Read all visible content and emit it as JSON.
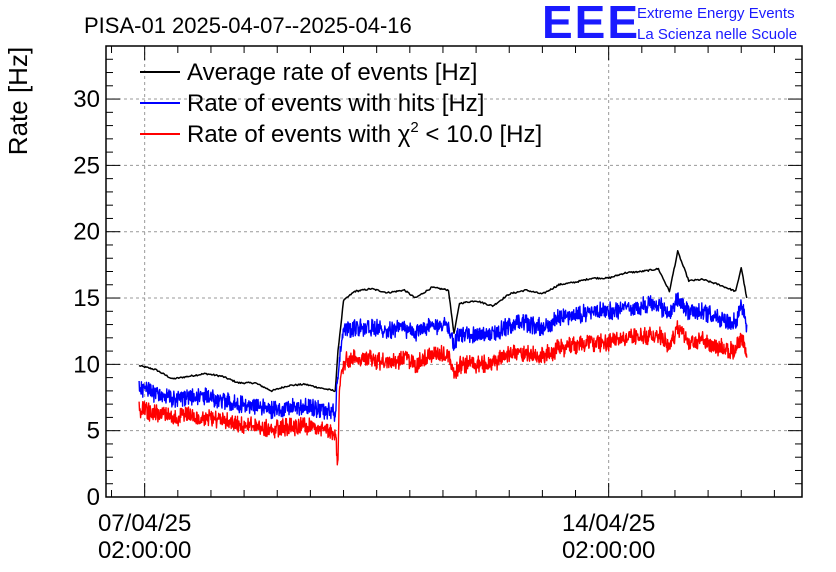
{
  "chart_data": {
    "type": "line",
    "title": "PISA-01 2025-04-07--2025-04-16",
    "ylabel": "Rate [Hz]",
    "xlabel": "",
    "ylim": [
      0,
      34
    ],
    "xlim": [
      "2025-04-06 12:00",
      "2025-04-17 00:00"
    ],
    "yticks": [
      0,
      5,
      10,
      15,
      20,
      25,
      30
    ],
    "xticks": [
      {
        "x": "2025-04-07 02:00",
        "date_label": "07/04/25",
        "time_label": "02:00:00"
      },
      {
        "x": "2025-04-14 02:00",
        "date_label": "14/04/25",
        "time_label": "02:00:00"
      }
    ],
    "grid": true,
    "legend_position": "top-left",
    "series": [
      {
        "name": "Average rate of events [Hz]",
        "color": "#000000",
        "noise": 0.0,
        "points": [
          [
            "2025-04-07 00:00",
            9.9
          ],
          [
            "2025-04-07 06:00",
            9.6
          ],
          [
            "2025-04-07 12:00",
            8.9
          ],
          [
            "2025-04-07 18:00",
            9.1
          ],
          [
            "2025-04-08 00:00",
            9.3
          ],
          [
            "2025-04-08 06:00",
            9.1
          ],
          [
            "2025-04-08 12:00",
            8.6
          ],
          [
            "2025-04-08 18:00",
            8.6
          ],
          [
            "2025-04-09 00:00",
            8.0
          ],
          [
            "2025-04-09 06:00",
            8.4
          ],
          [
            "2025-04-09 12:00",
            8.5
          ],
          [
            "2025-04-09 18:00",
            8.2
          ],
          [
            "2025-04-09 23:00",
            8.0
          ],
          [
            "2025-04-10 00:00",
            11.0
          ],
          [
            "2025-04-10 02:00",
            14.8
          ],
          [
            "2025-04-10 06:00",
            15.5
          ],
          [
            "2025-04-10 12:00",
            15.7
          ],
          [
            "2025-04-10 18:00",
            15.4
          ],
          [
            "2025-04-11 00:00",
            15.6
          ],
          [
            "2025-04-11 04:00",
            15.0
          ],
          [
            "2025-04-11 10:00",
            15.8
          ],
          [
            "2025-04-11 16:00",
            15.6
          ],
          [
            "2025-04-11 18:00",
            12.3
          ],
          [
            "2025-04-11 20:00",
            14.6
          ],
          [
            "2025-04-12 02:00",
            14.8
          ],
          [
            "2025-04-12 08:00",
            14.4
          ],
          [
            "2025-04-12 14:00",
            15.3
          ],
          [
            "2025-04-12 20:00",
            15.6
          ],
          [
            "2025-04-13 02:00",
            15.3
          ],
          [
            "2025-04-13 08:00",
            16.0
          ],
          [
            "2025-04-13 14:00",
            16.2
          ],
          [
            "2025-04-13 20:00",
            16.5
          ],
          [
            "2025-04-14 02:00",
            16.5
          ],
          [
            "2025-04-14 08:00",
            16.9
          ],
          [
            "2025-04-14 14:00",
            17.0
          ],
          [
            "2025-04-14 20:00",
            17.2
          ],
          [
            "2025-04-15 00:00",
            15.5
          ],
          [
            "2025-04-15 03:00",
            18.5
          ],
          [
            "2025-04-15 07:00",
            16.3
          ],
          [
            "2025-04-15 12:00",
            16.4
          ],
          [
            "2025-04-15 18:00",
            16.0
          ],
          [
            "2025-04-16 00:00",
            15.5
          ],
          [
            "2025-04-16 02:00",
            17.3
          ],
          [
            "2025-04-16 04:00",
            15.0
          ]
        ]
      },
      {
        "name": "Rate of events with hits [Hz]",
        "color": "#0000ff",
        "noise": 0.7,
        "points": [
          [
            "2025-04-07 00:00",
            8.2
          ],
          [
            "2025-04-07 06:00",
            7.8
          ],
          [
            "2025-04-07 12:00",
            7.4
          ],
          [
            "2025-04-07 18:00",
            7.6
          ],
          [
            "2025-04-08 00:00",
            7.6
          ],
          [
            "2025-04-08 06:00",
            7.3
          ],
          [
            "2025-04-08 12:00",
            7.0
          ],
          [
            "2025-04-08 18:00",
            6.9
          ],
          [
            "2025-04-09 00:00",
            6.6
          ],
          [
            "2025-04-09 06:00",
            6.8
          ],
          [
            "2025-04-09 12:00",
            6.8
          ],
          [
            "2025-04-09 18:00",
            6.6
          ],
          [
            "2025-04-09 23:00",
            6.4
          ],
          [
            "2025-04-10 00:00",
            9.5
          ],
          [
            "2025-04-10 02:00",
            12.5
          ],
          [
            "2025-04-10 06:00",
            12.8
          ],
          [
            "2025-04-10 12:00",
            12.8
          ],
          [
            "2025-04-10 18:00",
            12.5
          ],
          [
            "2025-04-11 00:00",
            12.7
          ],
          [
            "2025-04-11 04:00",
            12.4
          ],
          [
            "2025-04-11 10:00",
            13.0
          ],
          [
            "2025-04-11 16:00",
            12.8
          ],
          [
            "2025-04-11 18:00",
            11.5
          ],
          [
            "2025-04-11 20:00",
            12.3
          ],
          [
            "2025-04-12 02:00",
            12.3
          ],
          [
            "2025-04-12 08:00",
            12.2
          ],
          [
            "2025-04-12 14:00",
            13.0
          ],
          [
            "2025-04-12 20:00",
            13.1
          ],
          [
            "2025-04-13 02:00",
            12.8
          ],
          [
            "2025-04-13 08:00",
            13.5
          ],
          [
            "2025-04-13 14:00",
            13.7
          ],
          [
            "2025-04-13 20:00",
            14.0
          ],
          [
            "2025-04-14 02:00",
            14.0
          ],
          [
            "2025-04-14 08:00",
            14.2
          ],
          [
            "2025-04-14 14:00",
            14.4
          ],
          [
            "2025-04-14 20:00",
            14.6
          ],
          [
            "2025-04-15 00:00",
            13.5
          ],
          [
            "2025-04-15 03:00",
            15.0
          ],
          [
            "2025-04-15 07:00",
            14.0
          ],
          [
            "2025-04-15 12:00",
            14.0
          ],
          [
            "2025-04-15 18:00",
            13.5
          ],
          [
            "2025-04-16 00:00",
            13.2
          ],
          [
            "2025-04-16 02:00",
            14.4
          ],
          [
            "2025-04-16 04:00",
            13.0
          ]
        ]
      },
      {
        "name": "Rate of events with χ² < 10.0 [Hz]",
        "color": "#ff0000",
        "noise": 0.7,
        "points": [
          [
            "2025-04-07 00:00",
            6.6
          ],
          [
            "2025-04-07 06:00",
            6.3
          ],
          [
            "2025-04-07 12:00",
            5.9
          ],
          [
            "2025-04-07 18:00",
            6.1
          ],
          [
            "2025-04-08 00:00",
            6.0
          ],
          [
            "2025-04-08 06:00",
            5.8
          ],
          [
            "2025-04-08 12:00",
            5.4
          ],
          [
            "2025-04-08 18:00",
            5.4
          ],
          [
            "2025-04-09 00:00",
            5.1
          ],
          [
            "2025-04-09 06:00",
            5.3
          ],
          [
            "2025-04-09 12:00",
            5.3
          ],
          [
            "2025-04-09 18:00",
            5.1
          ],
          [
            "2025-04-09 23:00",
            5.0
          ],
          [
            "2025-04-10 00:00",
            2.5
          ],
          [
            "2025-04-10 00:30",
            8.0
          ],
          [
            "2025-04-10 02:00",
            10.2
          ],
          [
            "2025-04-10 06:00",
            10.5
          ],
          [
            "2025-04-10 12:00",
            10.4
          ],
          [
            "2025-04-10 18:00",
            10.1
          ],
          [
            "2025-04-11 00:00",
            10.4
          ],
          [
            "2025-04-11 04:00",
            10.0
          ],
          [
            "2025-04-11 10:00",
            10.7
          ],
          [
            "2025-04-11 16:00",
            10.8
          ],
          [
            "2025-04-11 18:00",
            9.0
          ],
          [
            "2025-04-11 20:00",
            10.0
          ],
          [
            "2025-04-12 02:00",
            10.0
          ],
          [
            "2025-04-12 08:00",
            10.0
          ],
          [
            "2025-04-12 14:00",
            10.8
          ],
          [
            "2025-04-12 20:00",
            10.8
          ],
          [
            "2025-04-13 02:00",
            10.6
          ],
          [
            "2025-04-13 08:00",
            11.2
          ],
          [
            "2025-04-13 14:00",
            11.4
          ],
          [
            "2025-04-13 20:00",
            11.6
          ],
          [
            "2025-04-14 02:00",
            11.6
          ],
          [
            "2025-04-14 08:00",
            11.9
          ],
          [
            "2025-04-14 14:00",
            12.1
          ],
          [
            "2025-04-14 20:00",
            12.3
          ],
          [
            "2025-04-15 00:00",
            11.4
          ],
          [
            "2025-04-15 03:00",
            12.8
          ],
          [
            "2025-04-15 07:00",
            11.8
          ],
          [
            "2025-04-15 12:00",
            11.8
          ],
          [
            "2025-04-15 18:00",
            11.3
          ],
          [
            "2025-04-16 00:00",
            11.0
          ],
          [
            "2025-04-16 02:00",
            12.2
          ],
          [
            "2025-04-16 04:00",
            10.5
          ]
        ]
      }
    ]
  },
  "logo": {
    "mark": "EEE",
    "line1": "Extreme Energy Events",
    "line2": "La Scienza nelle Scuole"
  },
  "legend_labels": {
    "avg": "Average rate of events [Hz]",
    "hits": "Rate of events with hits [Hz]",
    "chi_prefix": "Rate of events with χ",
    "chi_sup": "2",
    "chi_suffix": " < 10.0 [Hz]"
  }
}
